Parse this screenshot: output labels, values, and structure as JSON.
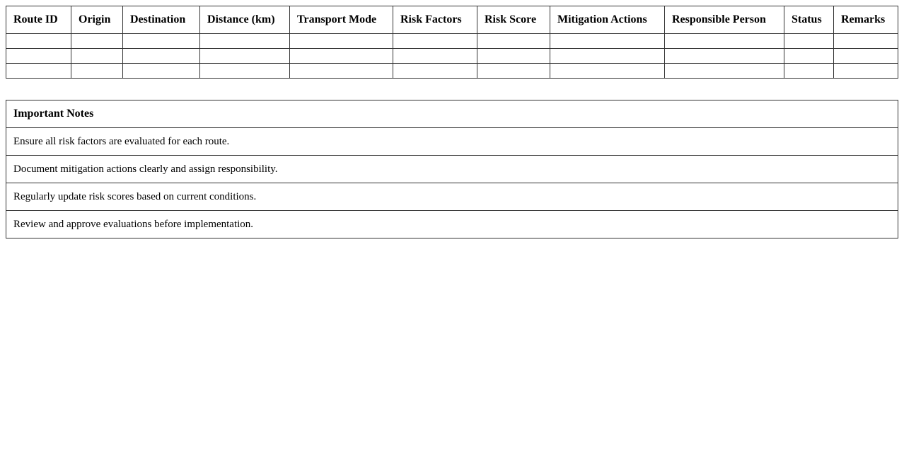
{
  "evaluation_table": {
    "columns": [
      "Route ID",
      "Origin",
      "Destination",
      "Distance (km)",
      "Transport Mode",
      "Risk Factors",
      "Risk Score",
      "Mitigation Actions",
      "Responsible Person",
      "Status",
      "Remarks"
    ],
    "rows": [
      [
        "",
        "",
        "",
        "",
        "",
        "",
        "",
        "",
        "",
        "",
        ""
      ],
      [
        "",
        "",
        "",
        "",
        "",
        "",
        "",
        "",
        "",
        "",
        ""
      ],
      [
        "",
        "",
        "",
        "",
        "",
        "",
        "",
        "",
        "",
        "",
        ""
      ]
    ]
  },
  "notes": {
    "title": "Important Notes",
    "items": [
      "Ensure all risk factors are evaluated for each route.",
      "Document mitigation actions clearly and assign responsibility.",
      "Regularly update risk scores based on current conditions.",
      "Review and approve evaluations before implementation."
    ]
  }
}
